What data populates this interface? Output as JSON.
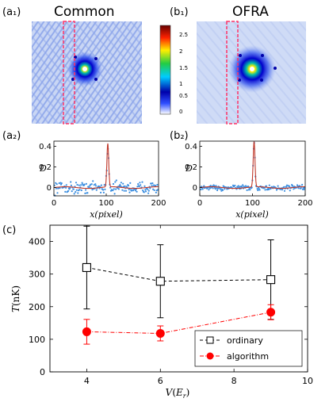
{
  "panel_labels": {
    "a1": "(a₁)",
    "b1": "(b₁)",
    "a2": "(a₂)",
    "b2": "(b₂)",
    "c": "(c)"
  },
  "titles": {
    "a1": "Common",
    "b1": "OFRA"
  },
  "colorbar": {
    "ticks": [
      "0",
      "0.5",
      "1",
      "1.5",
      "2",
      "2.5"
    ]
  },
  "colors": {
    "ordinary": "#000000",
    "algorithm": "#ff0000",
    "dots": "#3d8fe0",
    "fit": "#c0392b",
    "frame": "#ff3366"
  },
  "chart_data": [
    {
      "panel": "a2",
      "type": "scatter",
      "xlabel": "x(pixel)",
      "ylabel": "D",
      "xlim": [
        0,
        200
      ],
      "ylim": [
        -0.08,
        0.45
      ],
      "xticks": [
        "0",
        "100",
        "200"
      ],
      "yticks": [
        "0",
        "0.2",
        "0.4"
      ],
      "peak_x": 103,
      "peak_D": 0.42,
      "noise": 0.035
    },
    {
      "panel": "b2",
      "type": "scatter",
      "xlabel": "x(pixel)",
      "ylabel": "D",
      "xlim": [
        0,
        200
      ],
      "ylim": [
        -0.08,
        0.45
      ],
      "xticks": [
        "0",
        "100",
        "200"
      ],
      "yticks": [
        "0",
        "0.2",
        "0.4"
      ],
      "peak_x": 103,
      "peak_D": 0.44,
      "noise": 0.015
    },
    {
      "panel": "c",
      "type": "line",
      "xlabel": "V(E",
      "xlabel_sub": "r",
      "xlabel_tail": ")",
      "ylabel": "T(nK)",
      "xlim": [
        3,
        10
      ],
      "ylim": [
        0,
        450
      ],
      "xticks": [
        4,
        6,
        8,
        10
      ],
      "yticks": [
        0,
        100,
        200,
        300,
        400
      ],
      "legend_position": "lower-right",
      "series": [
        {
          "name": "ordinary",
          "x": [
            4,
            6,
            9
          ],
          "y": [
            320,
            278,
            283
          ],
          "yerr": [
            127,
            112,
            122
          ],
          "marker": "square-open",
          "line": "dashed"
        },
        {
          "name": "algorithm",
          "x": [
            4,
            6,
            9
          ],
          "y": [
            123,
            118,
            183
          ],
          "yerr": [
            38,
            23,
            23
          ],
          "marker": "circle-filled",
          "line": "dash-dot"
        }
      ]
    }
  ]
}
